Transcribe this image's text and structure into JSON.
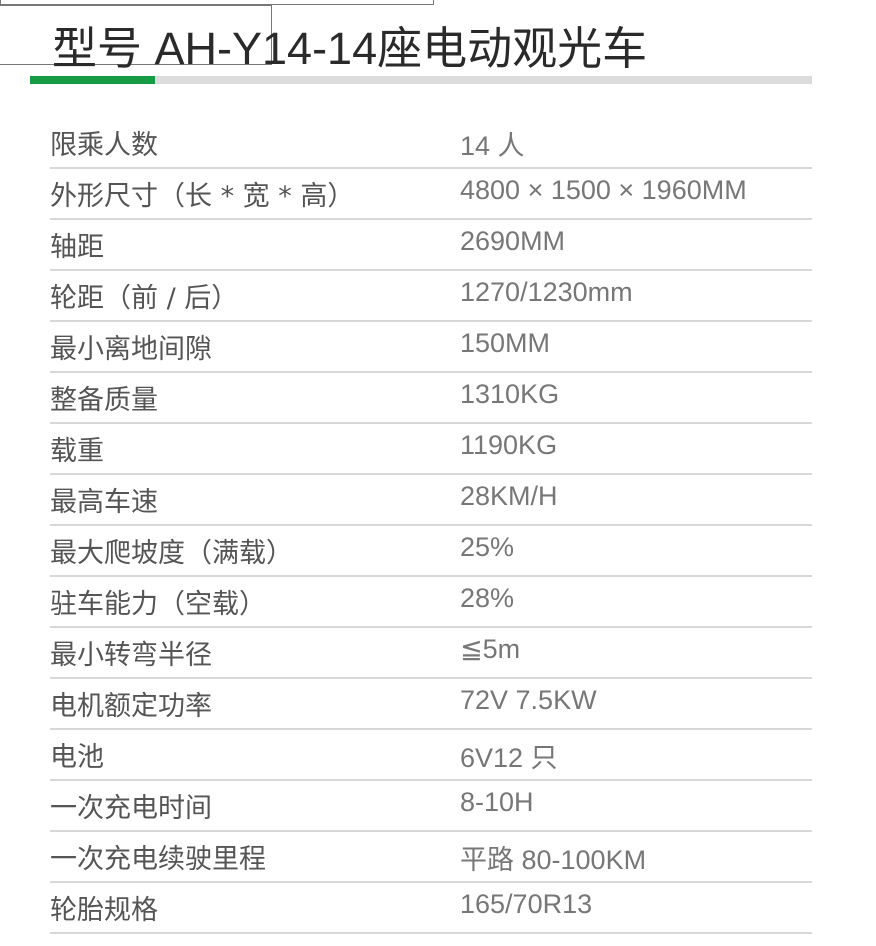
{
  "title": "型号 AH-Y14-14座电动观光车",
  "accent_color": "#169c45",
  "title_bar_fill_fraction": 0.16,
  "specs": [
    {
      "label": "限乘人数",
      "value": "14 人"
    },
    {
      "label": "外形尺寸（长 * 宽 * 高）",
      "value": "4800 × 1500 × 1960MM"
    },
    {
      "label": "轴距",
      "value": "2690MM"
    },
    {
      "label": "轮距（前 / 后）",
      "value": "1270/1230mm"
    },
    {
      "label": "最小离地间隙",
      "value": "150MM"
    },
    {
      "label": "整备质量",
      "value": "1310KG"
    },
    {
      "label": "载重",
      "value": "1190KG"
    },
    {
      "label": "最高车速",
      "value": "28KM/H"
    },
    {
      "label": "最大爬坡度（满载）",
      "value": "25%"
    },
    {
      "label": "驻车能力（空载）",
      "value": "28%"
    },
    {
      "label": "最小转弯半径",
      "value": "≦5m"
    },
    {
      "label": "电机额定功率",
      "value": "72V 7.5KW"
    },
    {
      "label": "电池",
      "value": "6V12 只"
    },
    {
      "label": "一次充电时间",
      "value": "8-10H"
    },
    {
      "label": "一次充电续驶里程",
      "value": "平路 80-100KM"
    },
    {
      "label": "轮胎规格",
      "value": "165/70R13"
    }
  ]
}
